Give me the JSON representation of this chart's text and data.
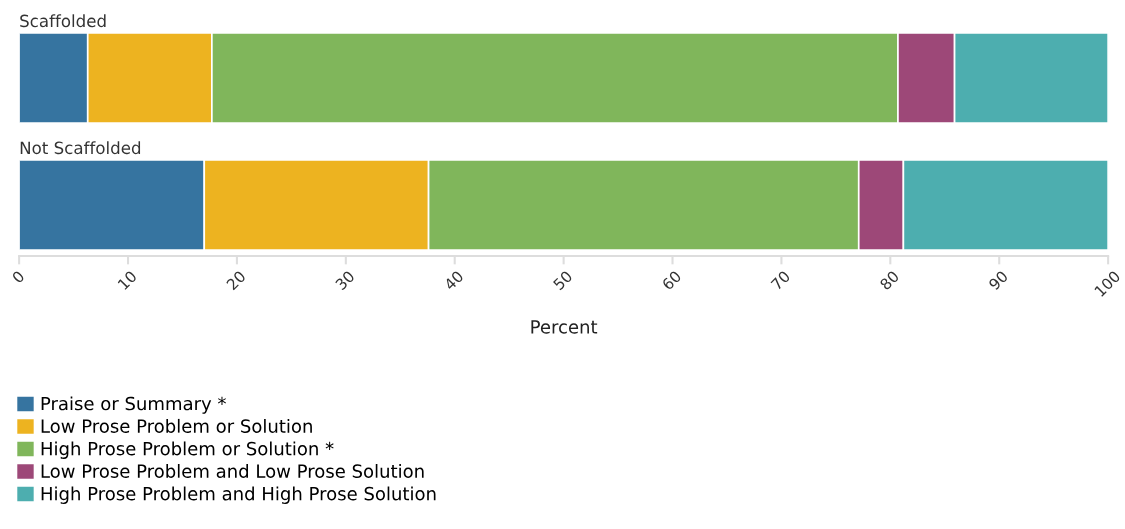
{
  "chart_data": {
    "type": "bar",
    "orientation": "horizontal",
    "stacked": true,
    "categories": [
      "Scaffolded",
      "Not Scaffolded"
    ],
    "xlabel": "Percent",
    "series": [
      {
        "name": "Praise or Summary *",
        "color": "#3674a0",
        "values": [
          6.3,
          17.0
        ]
      },
      {
        "name": "Low Prose Problem or Solution",
        "color": "#edb320",
        "values": [
          11.4,
          20.6
        ]
      },
      {
        "name": "High Prose Problem or Solution *",
        "color": "#80b65b",
        "values": [
          63.0,
          39.5
        ]
      },
      {
        "name": "Low Prose Problem and Low Prose Solution",
        "color": "#9d4878",
        "values": [
          5.2,
          4.1
        ]
      },
      {
        "name": "High Prose Problem and High Prose Solution",
        "color": "#4daeaf",
        "values": [
          14.1,
          18.8
        ]
      }
    ],
    "xlim": [
      0,
      100
    ],
    "xticks": [
      0,
      10,
      20,
      30,
      40,
      50,
      60,
      70,
      80,
      90,
      100
    ],
    "grid": false,
    "legend": "bottom left"
  }
}
